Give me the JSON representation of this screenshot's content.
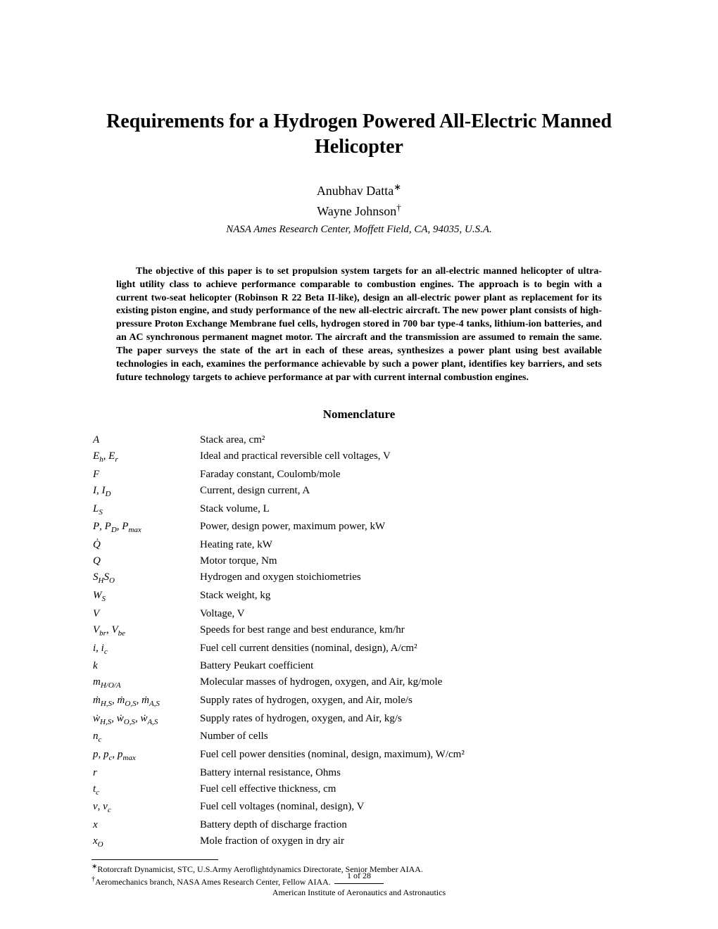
{
  "title": "Requirements for a Hydrogen Powered All-Electric Manned Helicopter",
  "authors": [
    {
      "name": "Anubhav Datta",
      "symbol": "∗"
    },
    {
      "name": "Wayne Johnson",
      "symbol": "†"
    }
  ],
  "affiliation": "NASA Ames Research Center, Moffett Field, CA, 94035, U.S.A.",
  "abstract": "The objective of this paper is to set propulsion system targets for an all-electric manned helicopter of ultra-light utility class to achieve performance comparable to combustion engines. The approach is to begin with a current two-seat helicopter (Robinson R 22 Beta II-like), design an all-electric power plant as replacement for its existing piston engine, and study performance of the new all-electric aircraft. The new power plant consists of high-pressure Proton Exchange Membrane fuel cells, hydrogen stored in 700 bar type-4 tanks, lithium-ion batteries, and an AC synchronous permanent magnet motor. The aircraft and the transmission are assumed to remain the same. The paper surveys the state of the art in each of these areas, synthesizes a power plant using best available technologies in each, examines the performance achievable by such a power plant, identifies key barriers, and sets future technology targets to achieve performance at par with current internal combustion engines.",
  "nomenclature_heading": "Nomenclature",
  "nomenclature": [
    {
      "symbol": "A",
      "description": "Stack area, cm²"
    },
    {
      "symbol": "Eₕ, Eᵣ",
      "description": "Ideal and practical reversible cell voltages, V"
    },
    {
      "symbol": "F",
      "description": "Faraday constant, Coulomb/mole"
    },
    {
      "symbol": "I, I_D",
      "description": "Current, design current, A"
    },
    {
      "symbol": "L_S",
      "description": "Stack volume, L"
    },
    {
      "symbol": "P, P_D, P_max",
      "description": "Power, design power, maximum power, kW"
    },
    {
      "symbol": "Q̇",
      "description": "Heating rate, kW"
    },
    {
      "symbol": "Q",
      "description": "Motor torque, Nm"
    },
    {
      "symbol": "S_H S_O",
      "description": "Hydrogen and oxygen stoichiometries"
    },
    {
      "symbol": "W_S",
      "description": "Stack weight, kg"
    },
    {
      "symbol": "V",
      "description": "Voltage, V"
    },
    {
      "symbol": "V_br, V_be",
      "description": "Speeds for best range and best endurance, km/hr"
    },
    {
      "symbol": "i, i_c",
      "description": "Fuel cell current densities (nominal, design), A/cm²"
    },
    {
      "symbol": "k",
      "description": "Battery Peukart coefficient"
    },
    {
      "symbol": "m_H/O/A",
      "description": "Molecular masses of hydrogen, oxygen, and Air, kg/mole"
    },
    {
      "symbol": "ṁ_H,S, ṁ_O,S, ṁ_A,S",
      "description": "Supply rates of hydrogen, oxygen, and Air, mole/s"
    },
    {
      "symbol": "ẇ_H,S, ẇ_O,S, ẇ_A,S",
      "description": "Supply rates of hydrogen, oxygen, and Air, kg/s"
    },
    {
      "symbol": "n_c",
      "description": "Number of cells"
    },
    {
      "symbol": "p, p_c, p_max",
      "description": "Fuel cell power densities (nominal, design, maximum), W/cm²"
    },
    {
      "symbol": "r",
      "description": "Battery internal resistance, Ohms"
    },
    {
      "symbol": "t_c",
      "description": "Fuel cell effective thickness, cm"
    },
    {
      "symbol": "v, v_c",
      "description": "Fuel cell voltages (nominal, design), V"
    },
    {
      "symbol": "x",
      "description": "Battery depth of discharge fraction"
    },
    {
      "symbol": "x_O",
      "description": "Mole fraction of oxygen in dry air"
    }
  ],
  "footnotes": [
    {
      "symbol": "∗",
      "text": "Rotorcraft Dynamicist, STC, U.S.Army Aeroflightdynamics Directorate, Senior Member AIAA."
    },
    {
      "symbol": "†",
      "text": "Aeromechanics branch, NASA Ames Research Center, Fellow AIAA."
    }
  ],
  "page_number": "1 of 28",
  "publisher": "American Institute of Aeronautics and Astronautics"
}
